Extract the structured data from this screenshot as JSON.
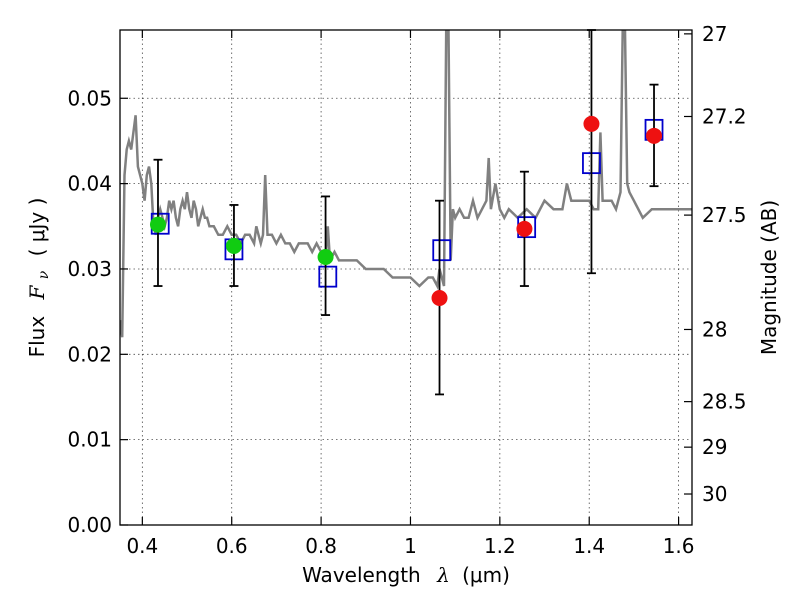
{
  "chart_data": {
    "type": "scatter",
    "xlabel_text": "Wavelength",
    "xlabel_symbol": "λ",
    "xlabel_unit": "(μm)",
    "ylabel_text": "Flux",
    "ylabel_symbol": "F",
    "ylabel_subscript": "ν",
    "ylabel_unit": "( μJy )",
    "y2label": "Magnitude (AB)",
    "xlim": [
      0.35,
      1.63
    ],
    "ylim": [
      0.0,
      0.058
    ],
    "x_ticks": [
      0.4,
      0.6,
      0.8,
      1.0,
      1.2,
      1.4,
      1.6
    ],
    "x_tick_labels": [
      "0.4",
      "0.6",
      "0.8",
      "1",
      "1.2",
      "1.4",
      "1.6"
    ],
    "y_ticks": [
      0.0,
      0.01,
      0.02,
      0.03,
      0.04,
      0.05
    ],
    "y_tick_labels": [
      "0.00",
      "0.01",
      "0.02",
      "0.03",
      "0.04",
      "0.05"
    ],
    "y2_ticks": [
      27,
      27.2,
      27.5,
      28,
      28.5,
      29,
      30
    ],
    "y2_tick_labels": [
      "27",
      "27.2",
      "27.5",
      "28",
      "28.5",
      "29",
      "30"
    ],
    "grid": true,
    "colors": {
      "template": "#808080",
      "optical_points": "#11cc11",
      "ir_points": "#ee1111",
      "model_boxes": "#0000cc",
      "error_bars": "#000000"
    },
    "template_spectrum": {
      "x": [
        0.35,
        0.355,
        0.36,
        0.365,
        0.37,
        0.375,
        0.38,
        0.385,
        0.39,
        0.395,
        0.4,
        0.405,
        0.41,
        0.415,
        0.42,
        0.425,
        0.43,
        0.435,
        0.44,
        0.445,
        0.45,
        0.455,
        0.46,
        0.465,
        0.47,
        0.475,
        0.48,
        0.485,
        0.49,
        0.495,
        0.5,
        0.505,
        0.51,
        0.515,
        0.52,
        0.525,
        0.53,
        0.535,
        0.54,
        0.545,
        0.55,
        0.56,
        0.57,
        0.58,
        0.59,
        0.6,
        0.61,
        0.62,
        0.63,
        0.64,
        0.65,
        0.655,
        0.66,
        0.665,
        0.67,
        0.675,
        0.68,
        0.69,
        0.7,
        0.71,
        0.72,
        0.73,
        0.74,
        0.75,
        0.76,
        0.77,
        0.78,
        0.79,
        0.8,
        0.81,
        0.815,
        0.82,
        0.83,
        0.84,
        0.85,
        0.86,
        0.88,
        0.9,
        0.92,
        0.94,
        0.96,
        0.98,
        1.0,
        1.02,
        1.04,
        1.05,
        1.06,
        1.065,
        1.07,
        1.075,
        1.08,
        1.085,
        1.09,
        1.095,
        1.1,
        1.11,
        1.12,
        1.13,
        1.14,
        1.15,
        1.16,
        1.17,
        1.175,
        1.18,
        1.19,
        1.2,
        1.21,
        1.22,
        1.24,
        1.26,
        1.28,
        1.3,
        1.32,
        1.34,
        1.35,
        1.36,
        1.38,
        1.4,
        1.41,
        1.42,
        1.425,
        1.43,
        1.44,
        1.45,
        1.46,
        1.47,
        1.475,
        1.48,
        1.485,
        1.49,
        1.5,
        1.52,
        1.54,
        1.56,
        1.58,
        1.6,
        1.63
      ],
      "y": [
        0.024,
        0.022,
        0.041,
        0.044,
        0.045,
        0.044,
        0.046,
        0.048,
        0.042,
        0.041,
        0.04,
        0.038,
        0.041,
        0.042,
        0.04,
        0.035,
        0.034,
        0.036,
        0.037,
        0.036,
        0.035,
        0.036,
        0.038,
        0.037,
        0.038,
        0.036,
        0.035,
        0.037,
        0.038,
        0.037,
        0.039,
        0.037,
        0.036,
        0.038,
        0.037,
        0.035,
        0.036,
        0.037,
        0.036,
        0.036,
        0.035,
        0.035,
        0.034,
        0.034,
        0.035,
        0.034,
        0.034,
        0.033,
        0.034,
        0.034,
        0.033,
        0.035,
        0.034,
        0.033,
        0.034,
        0.041,
        0.034,
        0.034,
        0.033,
        0.034,
        0.033,
        0.033,
        0.032,
        0.033,
        0.033,
        0.033,
        0.032,
        0.033,
        0.032,
        0.031,
        0.035,
        0.031,
        0.032,
        0.031,
        0.031,
        0.031,
        0.031,
        0.03,
        0.03,
        0.03,
        0.029,
        0.029,
        0.029,
        0.028,
        0.029,
        0.029,
        0.028,
        0.03,
        0.029,
        0.028,
        0.058,
        0.058,
        0.031,
        0.037,
        0.036,
        0.037,
        0.036,
        0.036,
        0.038,
        0.036,
        0.037,
        0.038,
        0.043,
        0.037,
        0.04,
        0.037,
        0.036,
        0.037,
        0.036,
        0.037,
        0.036,
        0.038,
        0.037,
        0.037,
        0.04,
        0.038,
        0.038,
        0.038,
        0.037,
        0.037,
        0.046,
        0.038,
        0.038,
        0.038,
        0.037,
        0.039,
        0.058,
        0.058,
        0.04,
        0.039,
        0.038,
        0.036,
        0.037,
        0.037,
        0.037,
        0.037,
        0.037
      ]
    },
    "optical_points": [
      {
        "x": 0.435,
        "y": 0.0352,
        "err_low": 0.028,
        "err_high": 0.0428
      },
      {
        "x": 0.605,
        "y": 0.0327,
        "err_low": 0.028,
        "err_high": 0.0375
      },
      {
        "x": 0.81,
        "y": 0.0314,
        "err_low": 0.0246,
        "err_high": 0.0385
      }
    ],
    "ir_points": [
      {
        "x": 1.065,
        "y": 0.0266,
        "err_low": 0.0153,
        "err_high": 0.038
      },
      {
        "x": 1.255,
        "y": 0.0347,
        "err_low": 0.028,
        "err_high": 0.0414
      },
      {
        "x": 1.405,
        "y": 0.047,
        "err_low": 0.0295,
        "err_high": 0.058
      },
      {
        "x": 1.545,
        "y": 0.0456,
        "err_low": 0.0397,
        "err_high": 0.0516
      }
    ],
    "model_boxes": [
      {
        "x": 0.44,
        "y": 0.0353
      },
      {
        "x": 0.605,
        "y": 0.0323
      },
      {
        "x": 0.815,
        "y": 0.0291
      },
      {
        "x": 1.07,
        "y": 0.0322
      },
      {
        "x": 1.26,
        "y": 0.0349
      },
      {
        "x": 1.405,
        "y": 0.0424
      },
      {
        "x": 1.545,
        "y": 0.0463
      }
    ]
  }
}
